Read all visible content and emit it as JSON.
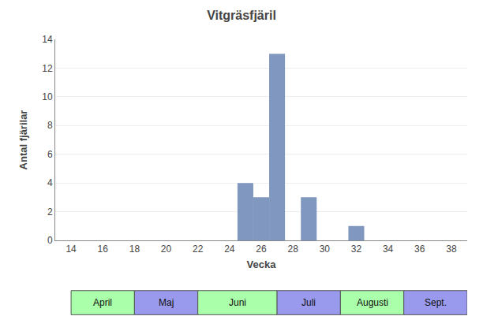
{
  "chart_data": {
    "type": "bar",
    "title": "Vitgräsfjäril",
    "xlabel": "Vecka",
    "ylabel": "Antal fjärilar",
    "x": [
      25,
      26,
      27,
      29,
      32
    ],
    "values": [
      4,
      3,
      13,
      3,
      1
    ],
    "color": "#8098c0",
    "xlim": [
      13,
      39
    ],
    "xticks": [
      14,
      16,
      18,
      20,
      22,
      24,
      26,
      28,
      30,
      32,
      34,
      36,
      38
    ],
    "ylim": [
      0,
      14
    ],
    "yticks": [
      0,
      2,
      4,
      6,
      8,
      10,
      12,
      14
    ],
    "grid": "y",
    "annotations": [
      {
        "text": "April",
        "x0": 14,
        "x1": 18,
        "color": "#aaffaa"
      },
      {
        "text": "Maj",
        "x0": 18,
        "x1": 22,
        "color": "#9999ee"
      },
      {
        "text": "Juni",
        "x0": 22,
        "x1": 27,
        "color": "#aaffaa"
      },
      {
        "text": "Juli",
        "x0": 27,
        "x1": 31,
        "color": "#9999ee"
      },
      {
        "text": "Augusti",
        "x0": 31,
        "x1": 35,
        "color": "#aaffaa"
      },
      {
        "text": "Sept.",
        "x0": 35,
        "x1": 39,
        "color": "#9999ee"
      }
    ]
  }
}
